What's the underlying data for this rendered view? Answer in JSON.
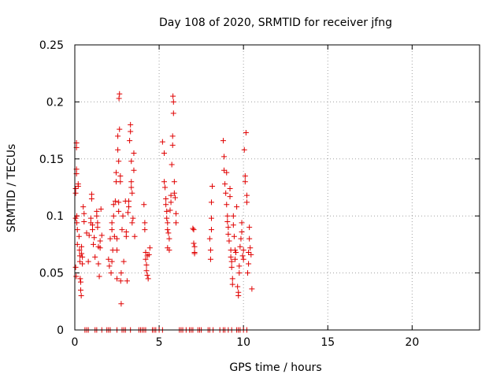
{
  "chart_data": {
    "type": "scatter",
    "title": "Day 108 of 2020, SRMTID for receiver jfng",
    "xlabel": "GPS time / hours",
    "ylabel": "SRMTID / TECUs",
    "xlim": [
      0,
      24
    ],
    "ylim": [
      0,
      0.25
    ],
    "xticks": [
      0,
      5,
      10,
      15,
      20
    ],
    "yticks": [
      0,
      0.05,
      0.1,
      0.15,
      0.2,
      0.25
    ],
    "xtick_labels": [
      "0",
      "5",
      "10",
      "15",
      "20"
    ],
    "ytick_labels": [
      "0",
      "0.05",
      "0.1",
      "0.15",
      "0.2",
      "0.25"
    ],
    "grid": true,
    "marker": "+",
    "color": "#e00000",
    "series": [
      {
        "name": "SRMTID",
        "points": [
          [
            0.05,
            0.098
          ],
          [
            0.05,
            0.12
          ],
          [
            0.05,
            0.124
          ],
          [
            0.05,
            0.055
          ],
          [
            0.08,
            0.047
          ],
          [
            0.1,
            0.164
          ],
          [
            0.1,
            0.16
          ],
          [
            0.1,
            0.141
          ],
          [
            0.1,
            0.137
          ],
          [
            0.12,
            0.1
          ],
          [
            0.12,
            0.094
          ],
          [
            0.15,
            0.088
          ],
          [
            0.15,
            0.075
          ],
          [
            0.2,
            0.126
          ],
          [
            0.2,
            0.128
          ],
          [
            0.25,
            0.082
          ],
          [
            0.28,
            0.07
          ],
          [
            0.3,
            0.065
          ],
          [
            0.3,
            0.06
          ],
          [
            0.32,
            0.045
          ],
          [
            0.35,
            0.042
          ],
          [
            0.35,
            0.035
          ],
          [
            0.38,
            0.03
          ],
          [
            0.4,
            0.067
          ],
          [
            0.4,
            0.073
          ],
          [
            0.45,
            0.064
          ],
          [
            0.45,
            0.058
          ],
          [
            0.5,
            0.108
          ],
          [
            0.55,
            0.102
          ],
          [
            0.55,
            0.095
          ],
          [
            0.7,
            0.085
          ],
          [
            0.8,
            0.06
          ],
          [
            0.85,
            0.083
          ],
          [
            0.95,
            0.094
          ],
          [
            0.95,
            0.098
          ],
          [
            1.0,
            0.115
          ],
          [
            1.0,
            0.119
          ],
          [
            1.05,
            0.092
          ],
          [
            1.05,
            0.088
          ],
          [
            1.1,
            0.075
          ],
          [
            1.15,
            0.081
          ],
          [
            1.2,
            0.064
          ],
          [
            1.3,
            0.1
          ],
          [
            1.3,
            0.104
          ],
          [
            1.35,
            0.09
          ],
          [
            1.35,
            0.094
          ],
          [
            1.4,
            0.058
          ],
          [
            1.4,
            0.073
          ],
          [
            1.45,
            0.047
          ],
          [
            1.5,
            0.078
          ],
          [
            1.5,
            0.072
          ],
          [
            1.55,
            0.106
          ],
          [
            1.6,
            0.083
          ],
          [
            2.0,
            0.062
          ],
          [
            2.05,
            0.056
          ],
          [
            2.1,
            0.08
          ],
          [
            2.15,
            0.05
          ],
          [
            2.2,
            0.06
          ],
          [
            2.2,
            0.088
          ],
          [
            2.2,
            0.094
          ],
          [
            2.25,
            0.07
          ],
          [
            2.3,
            0.11
          ],
          [
            2.3,
            0.1
          ],
          [
            2.35,
            0.082
          ],
          [
            2.4,
            0.113
          ],
          [
            2.45,
            0.13
          ],
          [
            2.45,
            0.138
          ],
          [
            2.5,
            0.08
          ],
          [
            2.5,
            0.07
          ],
          [
            2.5,
            0.045
          ],
          [
            2.55,
            0.17
          ],
          [
            2.55,
            0.158
          ],
          [
            2.6,
            0.148
          ],
          [
            2.6,
            0.112
          ],
          [
            2.6,
            0.104
          ],
          [
            2.62,
            0.203
          ],
          [
            2.65,
            0.207
          ],
          [
            2.65,
            0.176
          ],
          [
            2.7,
            0.135
          ],
          [
            2.7,
            0.13
          ],
          [
            2.72,
            0.043
          ],
          [
            2.75,
            0.023
          ],
          [
            2.75,
            0.05
          ],
          [
            2.8,
            0.088
          ],
          [
            2.85,
            0.1
          ],
          [
            2.9,
            0.06
          ],
          [
            3.0,
            0.113
          ],
          [
            3.05,
            0.086
          ],
          [
            3.05,
            0.082
          ],
          [
            3.1,
            0.043
          ],
          [
            3.15,
            0.103
          ],
          [
            3.2,
            0.113
          ],
          [
            3.2,
            0.108
          ],
          [
            3.25,
            0.166
          ],
          [
            3.3,
            0.18
          ],
          [
            3.3,
            0.174
          ],
          [
            3.35,
            0.148
          ],
          [
            3.35,
            0.13
          ],
          [
            3.35,
            0.125
          ],
          [
            3.4,
            0.12
          ],
          [
            3.4,
            0.094
          ],
          [
            3.45,
            0.098
          ],
          [
            3.5,
            0.14
          ],
          [
            3.5,
            0.155
          ],
          [
            3.55,
            0.082
          ],
          [
            4.1,
            0.11
          ],
          [
            4.15,
            0.088
          ],
          [
            4.15,
            0.094
          ],
          [
            4.2,
            0.068
          ],
          [
            4.2,
            0.062
          ],
          [
            4.25,
            0.057
          ],
          [
            4.25,
            0.052
          ],
          [
            4.3,
            0.065
          ],
          [
            4.3,
            0.048
          ],
          [
            4.35,
            0.045
          ],
          [
            4.4,
            0.066
          ],
          [
            4.45,
            0.072
          ],
          [
            5.2,
            0.165
          ],
          [
            5.3,
            0.155
          ],
          [
            5.3,
            0.13
          ],
          [
            5.35,
            0.125
          ],
          [
            5.4,
            0.115
          ],
          [
            5.4,
            0.11
          ],
          [
            5.45,
            0.104
          ],
          [
            5.45,
            0.098
          ],
          [
            5.5,
            0.094
          ],
          [
            5.5,
            0.088
          ],
          [
            5.5,
            0.072
          ],
          [
            5.55,
            0.085
          ],
          [
            5.6,
            0.08
          ],
          [
            5.6,
            0.07
          ],
          [
            5.65,
            0.105
          ],
          [
            5.7,
            0.118
          ],
          [
            5.7,
            0.112
          ],
          [
            5.75,
            0.145
          ],
          [
            5.8,
            0.162
          ],
          [
            5.8,
            0.17
          ],
          [
            5.82,
            0.205
          ],
          [
            5.85,
            0.2
          ],
          [
            5.85,
            0.19
          ],
          [
            5.9,
            0.13
          ],
          [
            5.9,
            0.12
          ],
          [
            5.95,
            0.116
          ],
          [
            6.0,
            0.102
          ],
          [
            6.0,
            0.094
          ],
          [
            7.0,
            0.089
          ],
          [
            7.05,
            0.088
          ],
          [
            7.05,
            0.076
          ],
          [
            7.1,
            0.073
          ],
          [
            7.1,
            0.067
          ],
          [
            7.1,
            0.068
          ],
          [
            8.0,
            0.08
          ],
          [
            8.05,
            0.07
          ],
          [
            8.05,
            0.062
          ],
          [
            8.1,
            0.088
          ],
          [
            8.1,
            0.098
          ],
          [
            8.1,
            0.112
          ],
          [
            8.15,
            0.126
          ],
          [
            8.8,
            0.166
          ],
          [
            8.85,
            0.152
          ],
          [
            8.85,
            0.14
          ],
          [
            8.9,
            0.128
          ],
          [
            8.95,
            0.12
          ],
          [
            9.0,
            0.138
          ],
          [
            9.0,
            0.11
          ],
          [
            9.05,
            0.1
          ],
          [
            9.05,
            0.095
          ],
          [
            9.1,
            0.09
          ],
          [
            9.1,
            0.084
          ],
          [
            9.15,
            0.078
          ],
          [
            9.2,
            0.124
          ],
          [
            9.2,
            0.117
          ],
          [
            9.25,
            0.07
          ],
          [
            9.25,
            0.064
          ],
          [
            9.3,
            0.06
          ],
          [
            9.3,
            0.055
          ],
          [
            9.35,
            0.045
          ],
          [
            9.35,
            0.04
          ],
          [
            9.4,
            0.1
          ],
          [
            9.4,
            0.092
          ],
          [
            9.45,
            0.082
          ],
          [
            9.5,
            0.07
          ],
          [
            9.5,
            0.062
          ],
          [
            9.55,
            0.068
          ],
          [
            9.6,
            0.108
          ],
          [
            9.65,
            0.038
          ],
          [
            9.7,
            0.033
          ],
          [
            9.7,
            0.03
          ],
          [
            9.75,
            0.05
          ],
          [
            9.75,
            0.056
          ],
          [
            9.8,
            0.073
          ],
          [
            9.85,
            0.08
          ],
          [
            9.9,
            0.086
          ],
          [
            9.9,
            0.094
          ],
          [
            9.95,
            0.065
          ],
          [
            10.0,
            0.07
          ],
          [
            10.0,
            0.062
          ],
          [
            10.05,
            0.158
          ],
          [
            10.1,
            0.135
          ],
          [
            10.1,
            0.13
          ],
          [
            10.15,
            0.173
          ],
          [
            10.2,
            0.118
          ],
          [
            10.2,
            0.112
          ],
          [
            10.25,
            0.05
          ],
          [
            10.3,
            0.058
          ],
          [
            10.3,
            0.068
          ],
          [
            10.35,
            0.08
          ],
          [
            10.35,
            0.09
          ],
          [
            10.4,
            0.072
          ],
          [
            10.45,
            0.066
          ],
          [
            10.5,
            0.036
          ],
          [
            0.6,
            0.0
          ],
          [
            0.7,
            0.0
          ],
          [
            0.8,
            0.0
          ],
          [
            1.2,
            0.0
          ],
          [
            1.3,
            0.0
          ],
          [
            1.6,
            0.0
          ],
          [
            1.9,
            0.0
          ],
          [
            2.0,
            0.0
          ],
          [
            2.1,
            0.0
          ],
          [
            2.5,
            0.0
          ],
          [
            2.8,
            0.0
          ],
          [
            2.9,
            0.0
          ],
          [
            3.0,
            0.0
          ],
          [
            3.3,
            0.0
          ],
          [
            3.8,
            0.0
          ],
          [
            3.9,
            0.0
          ],
          [
            4.0,
            0.0
          ],
          [
            4.1,
            0.0
          ],
          [
            4.2,
            0.0
          ],
          [
            4.6,
            0.0
          ],
          [
            4.7,
            0.0
          ],
          [
            4.8,
            0.0
          ],
          [
            5.0,
            0.0
          ],
          [
            5.2,
            0.0
          ],
          [
            6.2,
            0.0
          ],
          [
            6.3,
            0.0
          ],
          [
            6.4,
            0.0
          ],
          [
            6.6,
            0.0
          ],
          [
            6.8,
            0.0
          ],
          [
            6.9,
            0.0
          ],
          [
            7.0,
            0.0
          ],
          [
            7.3,
            0.0
          ],
          [
            7.4,
            0.0
          ],
          [
            7.5,
            0.0
          ],
          [
            7.9,
            0.0
          ],
          [
            8.0,
            0.0
          ],
          [
            8.2,
            0.0
          ],
          [
            8.6,
            0.0
          ],
          [
            8.8,
            0.0
          ],
          [
            8.9,
            0.0
          ],
          [
            9.1,
            0.0
          ],
          [
            9.3,
            0.0
          ],
          [
            9.6,
            0.0
          ],
          [
            9.7,
            0.0
          ],
          [
            9.8,
            0.0
          ],
          [
            10.0,
            0.0
          ],
          [
            10.2,
            0.0
          ]
        ]
      }
    ]
  }
}
